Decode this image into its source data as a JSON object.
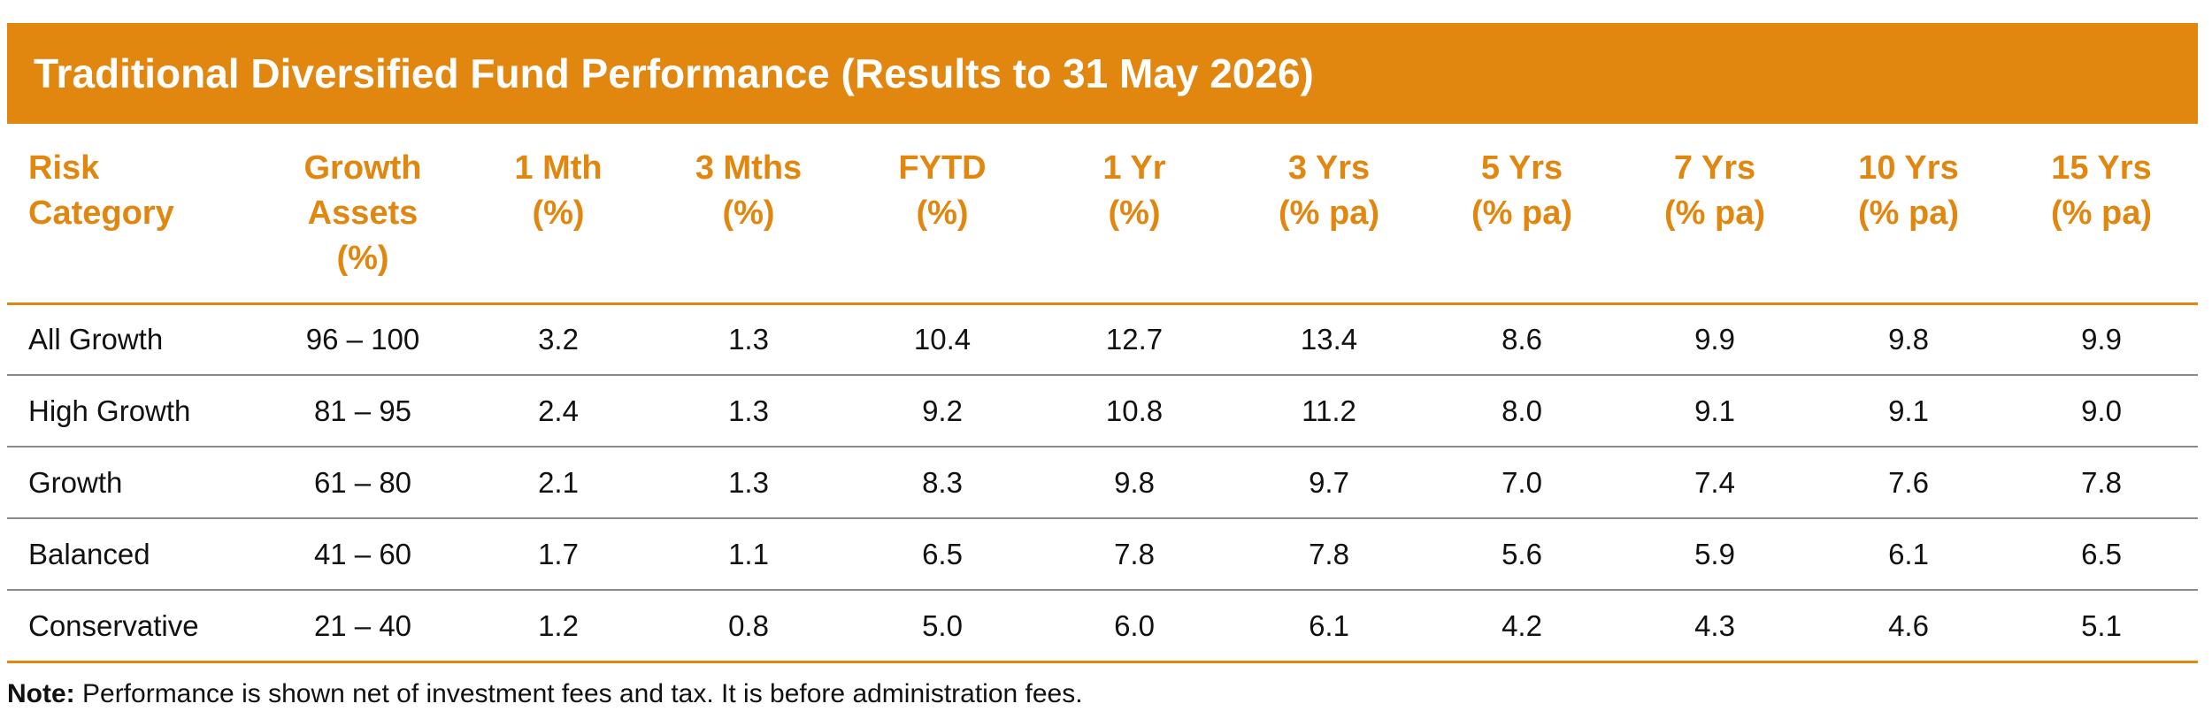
{
  "title": "Traditional Diversified Fund Performance (Results to 31 May 2026)",
  "table": {
    "headers": [
      [
        "Risk",
        "Category"
      ],
      [
        "Growth",
        "Assets",
        "(%)"
      ],
      [
        "1 Mth",
        "(%)"
      ],
      [
        "3 Mths",
        "(%)"
      ],
      [
        "FYTD",
        "(%)"
      ],
      [
        "1 Yr",
        "(%)"
      ],
      [
        "3 Yrs",
        "(% pa)"
      ],
      [
        "5 Yrs",
        "(% pa)"
      ],
      [
        "7 Yrs",
        "(% pa)"
      ],
      [
        "10 Yrs",
        "(% pa)"
      ],
      [
        "15 Yrs",
        "(% pa)"
      ]
    ],
    "rows": [
      [
        "All Growth",
        "96 – 100",
        "3.2",
        "1.3",
        "10.4",
        "12.7",
        "13.4",
        "8.6",
        "9.9",
        "9.8",
        "9.9"
      ],
      [
        "High Growth",
        "81 – 95",
        "2.4",
        "1.3",
        "9.2",
        "10.8",
        "11.2",
        "8.0",
        "9.1",
        "9.1",
        "9.0"
      ],
      [
        "Growth",
        "61 – 80",
        "2.1",
        "1.3",
        "8.3",
        "9.8",
        "9.7",
        "7.0",
        "7.4",
        "7.6",
        "7.8"
      ],
      [
        "Balanced",
        "41 – 60",
        "1.7",
        "1.1",
        "6.5",
        "7.8",
        "7.8",
        "5.6",
        "5.9",
        "6.1",
        "6.5"
      ],
      [
        "Conservative",
        "21 – 40",
        "1.2",
        "0.8",
        "5.0",
        "6.0",
        "6.1",
        "4.2",
        "4.3",
        "4.6",
        "5.1"
      ]
    ]
  },
  "note": {
    "label": "Note:",
    "text": "Performance is shown net of investment fees and tax. It is before administration fees."
  }
}
